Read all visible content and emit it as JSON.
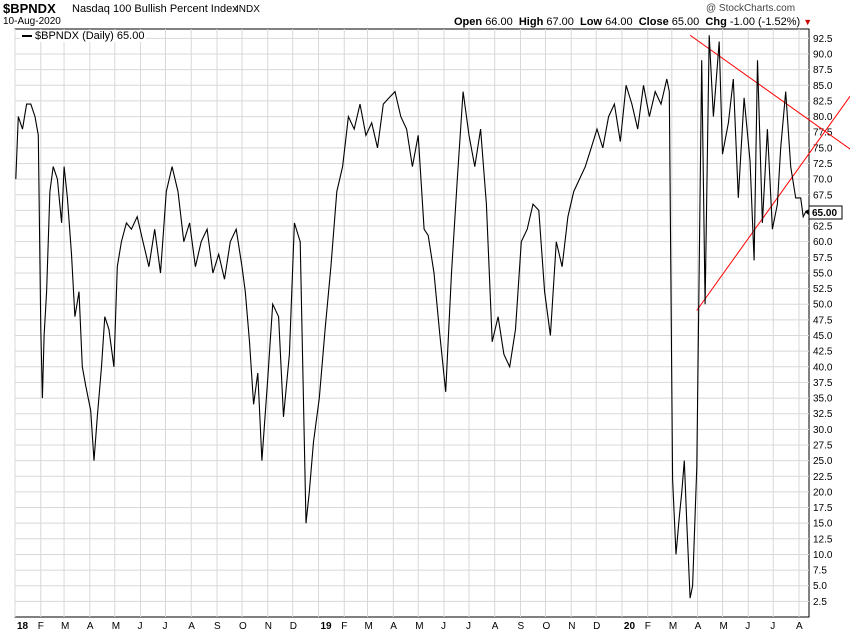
{
  "header": {
    "symbol": "$BPNDX",
    "name": "Nasdaq 100 Bullish Percent Index",
    "exchange": "INDX",
    "date": "10-Aug-2020",
    "watermark": "@ StockCharts.com",
    "open_label": "Open",
    "open_value": "66.00",
    "high_label": "High",
    "high_value": "67.00",
    "low_label": "Low",
    "low_value": "64.00",
    "close_label": "Close",
    "close_value": "65.00",
    "chg_label": "Chg",
    "chg_value": "-1.00 (-1.52%)"
  },
  "legend": {
    "text": "$BPNDX (Daily) 65.00"
  },
  "chart_data": {
    "type": "line",
    "title": "$BPNDX Nasdaq 100 Bullish Percent Index",
    "xlabel": "",
    "ylabel": "",
    "ylim": [
      0,
      94
    ],
    "y_ticks": [
      2.5,
      5.0,
      7.5,
      10.0,
      12.5,
      15.0,
      17.5,
      20.0,
      22.5,
      25.0,
      27.5,
      30.0,
      32.5,
      35.0,
      37.5,
      40.0,
      42.5,
      45.0,
      47.5,
      50.0,
      52.5,
      55.0,
      57.5,
      60.0,
      62.5,
      65.0,
      67.5,
      70.0,
      72.5,
      75.0,
      77.5,
      80.0,
      82.5,
      85.0,
      87.5,
      90.0,
      92.5
    ],
    "x_ticks": [
      "18",
      "F",
      "M",
      "A",
      "M",
      "J",
      "J",
      "A",
      "S",
      "O",
      "N",
      "D",
      "19",
      "F",
      "M",
      "A",
      "M",
      "J",
      "J",
      "A",
      "S",
      "O",
      "N",
      "D",
      "20",
      "F",
      "M",
      "A",
      "M",
      "J",
      "J",
      "A"
    ],
    "last_value_label": "65.00",
    "grid": true,
    "line_color": "#000000",
    "trendline_color": "#ff0000",
    "series": [
      {
        "x": [
          "2018-01-02",
          "2018-01-05",
          "2018-01-10",
          "2018-01-15",
          "2018-01-20",
          "2018-01-25",
          "2018-01-29",
          "2018-02-01",
          "2018-02-03",
          "2018-02-05",
          "2018-02-08",
          "2018-02-12",
          "2018-02-16",
          "2018-02-21",
          "2018-02-26",
          "2018-03-01",
          "2018-03-05",
          "2018-03-10",
          "2018-03-14",
          "2018-03-19",
          "2018-03-23",
          "2018-03-27",
          "2018-04-02",
          "2018-04-06",
          "2018-04-10",
          "2018-04-15",
          "2018-04-19",
          "2018-04-24",
          "2018-04-30",
          "2018-05-04",
          "2018-05-09",
          "2018-05-15",
          "2018-05-21",
          "2018-05-28",
          "2018-06-04",
          "2018-06-11",
          "2018-06-18",
          "2018-06-25",
          "2018-07-02",
          "2018-07-09",
          "2018-07-16",
          "2018-07-23",
          "2018-07-30",
          "2018-08-06",
          "2018-08-13",
          "2018-08-20",
          "2018-08-27",
          "2018-09-03",
          "2018-09-10",
          "2018-09-17",
          "2018-09-24",
          "2018-10-01",
          "2018-10-05",
          "2018-10-10",
          "2018-10-15",
          "2018-10-20",
          "2018-10-25",
          "2018-11-01",
          "2018-11-07",
          "2018-11-14",
          "2018-11-20",
          "2018-11-27",
          "2018-12-03",
          "2018-12-10",
          "2018-12-17",
          "2018-12-21",
          "2018-12-26",
          "2019-01-02",
          "2019-01-09",
          "2019-01-16",
          "2019-01-23",
          "2019-01-30",
          "2019-02-06",
          "2019-02-13",
          "2019-02-20",
          "2019-02-27",
          "2019-03-06",
          "2019-03-13",
          "2019-03-20",
          "2019-03-27",
          "2019-04-03",
          "2019-04-10",
          "2019-04-17",
          "2019-04-24",
          "2019-05-01",
          "2019-05-08",
          "2019-05-13",
          "2019-05-20",
          "2019-05-27",
          "2019-06-03",
          "2019-06-10",
          "2019-06-17",
          "2019-06-24",
          "2019-07-01",
          "2019-07-08",
          "2019-07-15",
          "2019-07-22",
          "2019-07-29",
          "2019-08-05",
          "2019-08-12",
          "2019-08-19",
          "2019-08-26",
          "2019-09-02",
          "2019-09-09",
          "2019-09-16",
          "2019-09-23",
          "2019-09-30",
          "2019-10-07",
          "2019-10-14",
          "2019-10-21",
          "2019-10-28",
          "2019-11-04",
          "2019-11-11",
          "2019-11-18",
          "2019-11-25",
          "2019-12-02",
          "2019-12-09",
          "2019-12-16",
          "2019-12-23",
          "2019-12-30",
          "2020-01-06",
          "2020-01-13",
          "2020-01-20",
          "2020-01-27",
          "2020-02-03",
          "2020-02-10",
          "2020-02-17",
          "2020-02-24",
          "2020-02-27",
          "2020-03-02",
          "2020-03-06",
          "2020-03-10",
          "2020-03-13",
          "2020-03-16",
          "2020-03-19",
          "2020-03-23",
          "2020-03-26",
          "2020-03-31",
          "2020-04-06",
          "2020-04-10",
          "2020-04-15",
          "2020-04-20",
          "2020-04-27",
          "2020-05-01",
          "2020-05-08",
          "2020-05-14",
          "2020-05-20",
          "2020-05-27",
          "2020-06-03",
          "2020-06-08",
          "2020-06-12",
          "2020-06-18",
          "2020-06-24",
          "2020-06-30",
          "2020-07-06",
          "2020-07-10",
          "2020-07-16",
          "2020-07-22",
          "2020-07-28",
          "2020-08-03",
          "2020-08-06",
          "2020-08-10"
        ],
        "values": [
          70,
          80,
          78,
          82,
          82,
          80,
          77,
          46,
          35,
          45,
          52,
          68,
          72,
          70,
          63,
          72,
          67,
          58,
          48,
          52,
          40,
          37,
          33,
          25,
          32,
          40,
          48,
          46,
          40,
          56,
          60,
          63,
          62,
          64,
          60,
          56,
          62,
          55,
          68,
          72,
          68,
          60,
          63,
          56,
          60,
          62,
          55,
          58,
          54,
          60,
          62,
          56,
          52,
          44,
          34,
          39,
          25,
          38,
          50,
          48,
          32,
          42,
          63,
          60,
          15,
          20,
          28,
          35,
          46,
          56,
          68,
          72,
          80,
          78,
          82,
          77,
          79,
          75,
          82,
          83,
          84,
          80,
          78,
          72,
          77,
          62,
          61,
          55,
          45,
          36,
          55,
          70,
          84,
          77,
          72,
          78,
          66,
          44,
          48,
          42,
          40,
          46,
          60,
          62,
          66,
          65,
          52,
          45,
          60,
          56,
          64,
          68,
          70,
          72,
          75,
          78,
          75,
          80,
          82,
          76,
          85,
          82,
          78,
          85,
          80,
          84,
          82,
          86,
          84,
          22,
          10,
          16,
          20,
          25,
          15,
          3,
          5,
          24,
          89,
          50,
          93,
          80,
          92,
          74,
          79,
          86,
          67,
          83,
          73,
          57,
          89,
          63,
          78,
          62,
          66,
          75,
          84,
          72,
          67,
          67,
          64,
          65
        ]
      }
    ],
    "trendlines": [
      {
        "x": [
          "2020-03-23",
          "2020-08-18"
        ],
        "values": [
          93,
          79
        ]
      },
      {
        "x": [
          "2020-03-31",
          "2020-08-18"
        ],
        "values": [
          49,
          75
        ]
      }
    ]
  }
}
